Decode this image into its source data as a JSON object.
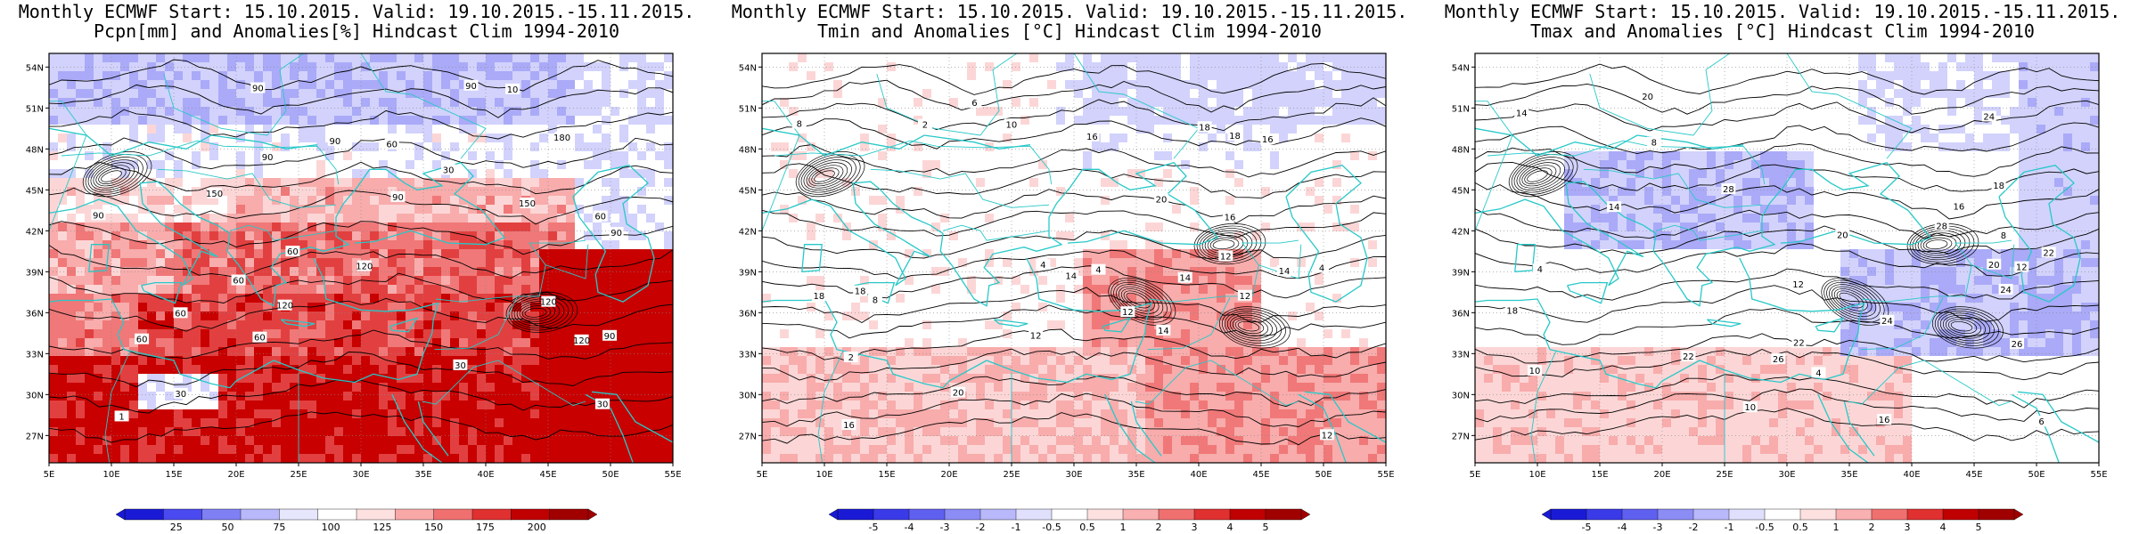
{
  "panels": [
    {
      "title_line1": "Monthly ECMWF Start: 15.10.2015. Valid: 19.10.2015.-15.11.2015.",
      "title_line2": "Pcpn[mm] and Anomalies[%] Hindcast Clim 1994-2010",
      "colorbar_labels": [
        "25",
        "50",
        "75",
        "100",
        "125",
        "150",
        "175",
        "200"
      ],
      "colorbar_colors": [
        "#1a1ad6",
        "#4a4af0",
        "#8080f5",
        "#b8b8fa",
        "#e6e6fd",
        "#ffffff",
        "#fde0e0",
        "#f9a8a8",
        "#f07070",
        "#e03030",
        "#c00000",
        "#a00000"
      ],
      "contour_labels": [
        "90",
        "60",
        "30",
        "90",
        "60",
        "90",
        "120",
        "90",
        "120",
        "180",
        "150",
        "120",
        "150",
        "60",
        "60",
        "120",
        "60",
        "90",
        "90",
        "90",
        "30",
        "60",
        "30",
        "60",
        "90",
        "10",
        "1",
        "30"
      ],
      "theme": "precip"
    },
    {
      "title_line1": "Monthly ECMWF Start: 15.10.2015. Valid: 19.10.2015.-15.11.2015.",
      "title_line2": "Tmin and Anomalies [°C] Hindcast Clim 1994-2010",
      "colorbar_labels": [
        "-5",
        "-4",
        "-3",
        "-2",
        "-1",
        "-0.5",
        "0.5",
        "1",
        "2",
        "3",
        "4",
        "5"
      ],
      "colorbar_colors": [
        "#1a1ad6",
        "#3a3ae8",
        "#6060f0",
        "#8c8cf5",
        "#b8b8fa",
        "#e0e0fd",
        "#ffffff",
        "#fde0e0",
        "#f9b0b0",
        "#f07070",
        "#e03030",
        "#c00000",
        "#a00000"
      ],
      "contour_labels": [
        "4",
        "2",
        "12",
        "8",
        "4",
        "14",
        "12",
        "18",
        "10",
        "16",
        "12",
        "14",
        "20",
        "16",
        "18",
        "14",
        "12",
        "16",
        "20",
        "18",
        "12",
        "14",
        "16",
        "18",
        "4",
        "6",
        "2",
        "8"
      ],
      "theme": "tmin"
    },
    {
      "title_line1": "Monthly ECMWF Start: 15.10.2015. Valid: 19.10.2015.-15.11.2015.",
      "title_line2": "Tmax and Anomalies [°C] Hindcast Clim 1994-2010",
      "colorbar_labels": [
        "-5",
        "-4",
        "-3",
        "-2",
        "-1",
        "-0.5",
        "0.5",
        "1",
        "2",
        "3",
        "4",
        "5"
      ],
      "colorbar_colors": [
        "#1a1ad6",
        "#3a3ae8",
        "#6060f0",
        "#8c8cf5",
        "#b8b8fa",
        "#e0e0fd",
        "#ffffff",
        "#fde0e0",
        "#f9b0b0",
        "#f07070",
        "#e03030",
        "#c00000",
        "#a00000"
      ],
      "contour_labels": [
        "4",
        "8",
        "6",
        "10",
        "12",
        "16",
        "14",
        "18",
        "20",
        "22",
        "24",
        "26",
        "28",
        "20",
        "22",
        "24",
        "26",
        "16",
        "18",
        "14",
        "12",
        "10",
        "8",
        "4",
        "22",
        "24",
        "28",
        "20"
      ],
      "theme": "tmax"
    }
  ],
  "lat_ticks": [
    "54N",
    "51N",
    "48N",
    "45N",
    "42N",
    "39N",
    "36N",
    "33N",
    "30N",
    "27N"
  ],
  "lon_ticks": [
    "5E",
    "10E",
    "15E",
    "20E",
    "25E",
    "30E",
    "35E",
    "40E",
    "45E",
    "50E",
    "55E"
  ],
  "colors": {
    "coast": "#28c8c8",
    "contour": "#000000",
    "grid": "#888888"
  }
}
